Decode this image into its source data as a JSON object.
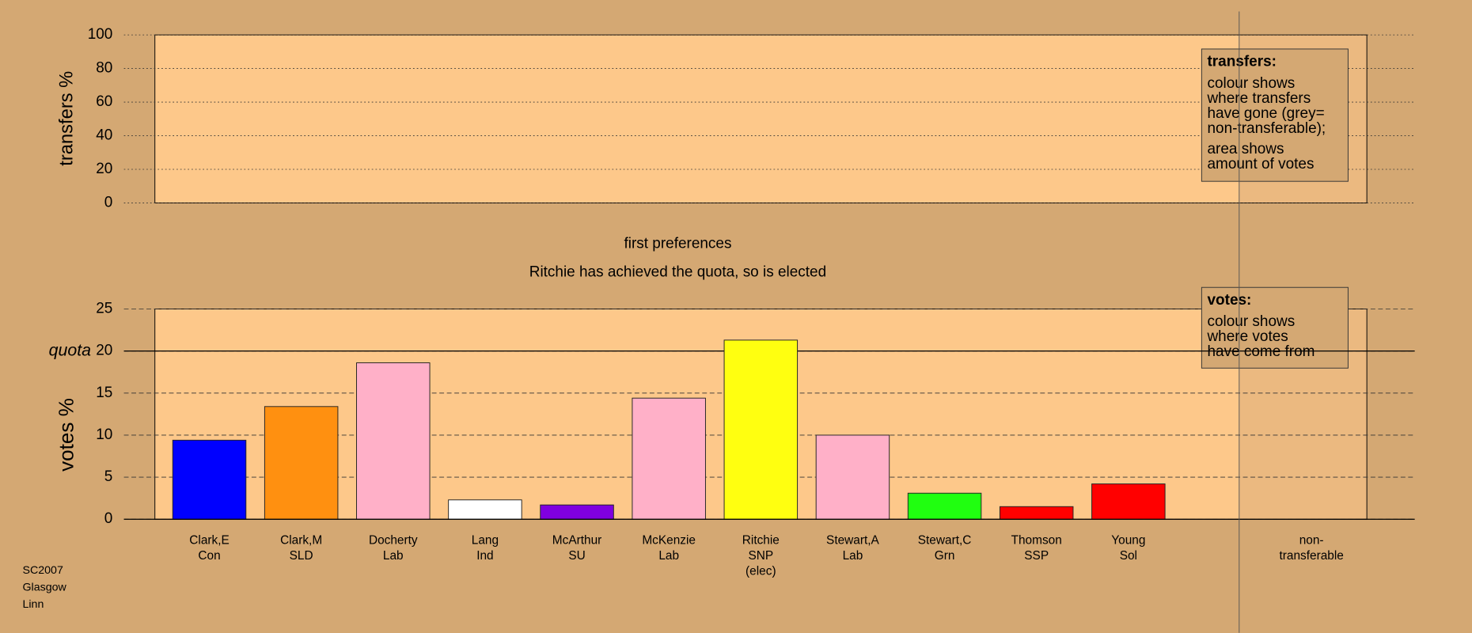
{
  "chart_data": [
    {
      "type": "panel",
      "ylabel": "transfers %",
      "ylim": [
        0,
        100
      ],
      "yticks": [
        0,
        20,
        40,
        60,
        80,
        100
      ],
      "legend_title": "transfers:",
      "legend_lines": [
        "colour shows",
        "where transfers",
        "have gone (grey=",
        "non-transferable);",
        "area shows",
        "amount of votes"
      ]
    },
    {
      "type": "bar",
      "title": "first preferences",
      "subtitle": "Ritchie has achieved the quota, so is elected",
      "ylabel": "votes %",
      "ylim": [
        0,
        25
      ],
      "yticks": [
        0,
        5,
        10,
        15,
        20,
        25
      ],
      "quota": {
        "value": 20,
        "label": "quota"
      },
      "categories": [
        [
          "Clark,E",
          "Con"
        ],
        [
          "Clark,M",
          "SLD"
        ],
        [
          "Docherty",
          "Lab"
        ],
        [
          "Lang",
          "Ind"
        ],
        [
          "McArthur",
          "SU"
        ],
        [
          "McKenzie",
          "Lab"
        ],
        [
          "Ritchie",
          "SNP",
          "(elec)"
        ],
        [
          "Stewart,A",
          "Lab"
        ],
        [
          "Stewart,C",
          "Grn"
        ],
        [
          "Thomson",
          "SSP"
        ],
        [
          "Young",
          "Sol"
        ]
      ],
      "values": [
        9.4,
        13.4,
        18.6,
        2.3,
        1.7,
        14.4,
        21.3,
        10.0,
        3.1,
        1.5,
        4.2
      ],
      "colors": [
        "#0000ff",
        "#ff9010",
        "#ffb0c8",
        "#ffffff",
        "#8000e0",
        "#ffb0c8",
        "#ffff10",
        "#ffb0c8",
        "#20ff10",
        "#ff0000",
        "#ff0000"
      ],
      "extra_column": [
        "non-",
        "transferable"
      ],
      "legend_title": "votes:",
      "legend_lines": [
        "colour shows",
        "where votes",
        "have come from"
      ]
    }
  ],
  "footer": [
    "SC2007",
    "Glasgow",
    "Linn"
  ]
}
